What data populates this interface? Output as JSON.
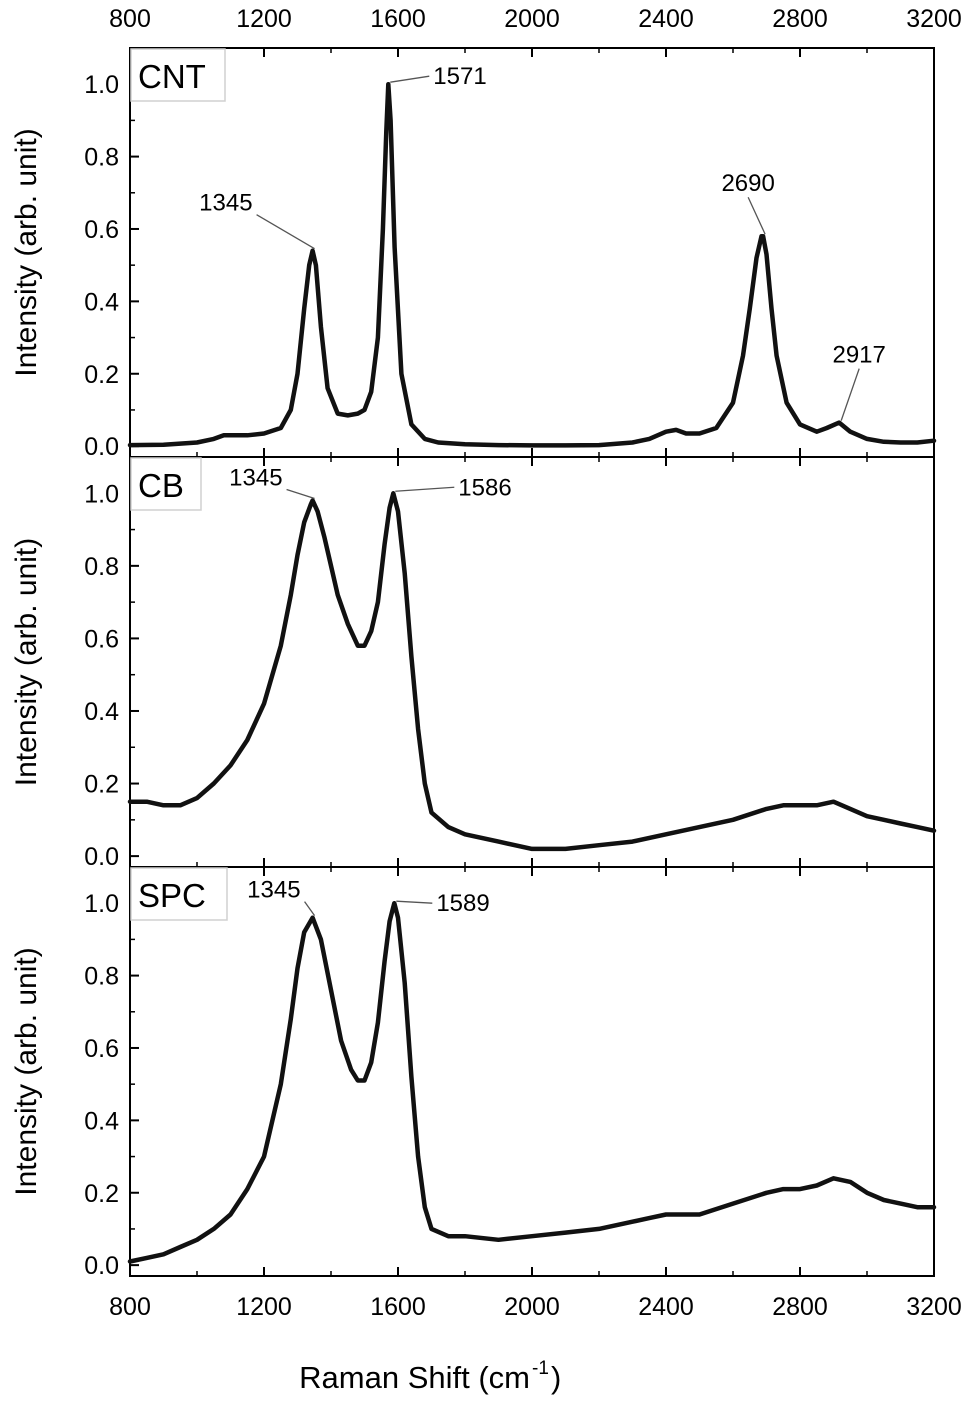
{
  "chart_data": {
    "type": "line",
    "layout": "three vertically stacked panels sharing one x axis",
    "x_axis": {
      "label": "Raman Shift (cm",
      "label_sup": "-1",
      "label_close": ")",
      "xlim": [
        800,
        3200
      ],
      "ticks": [
        800,
        1200,
        1600,
        2000,
        2400,
        2800,
        3200
      ],
      "tick_labels": [
        "800",
        "1200",
        "1600",
        "2000",
        "2400",
        "2800",
        "3200"
      ]
    },
    "y_axis": {
      "label": "Intensity (arb. unit)",
      "ylim": [
        -0.03,
        1.1
      ],
      "ticks": [
        0.0,
        0.2,
        0.4,
        0.6,
        0.8,
        1.0
      ],
      "tick_labels": [
        "0.0",
        "0.2",
        "0.4",
        "0.6",
        "0.8",
        "1.0"
      ]
    },
    "panels": [
      {
        "name": "CNT",
        "color": "#111111",
        "x": [
          800,
          900,
          1000,
          1050,
          1080,
          1100,
          1150,
          1200,
          1250,
          1280,
          1300,
          1320,
          1335,
          1345,
          1355,
          1370,
          1390,
          1420,
          1450,
          1480,
          1500,
          1520,
          1540,
          1555,
          1565,
          1571,
          1578,
          1590,
          1610,
          1640,
          1680,
          1720,
          1800,
          1900,
          2000,
          2100,
          2200,
          2300,
          2350,
          2400,
          2430,
          2460,
          2500,
          2550,
          2600,
          2630,
          2650,
          2670,
          2685,
          2690,
          2700,
          2715,
          2730,
          2760,
          2800,
          2850,
          2880,
          2917,
          2950,
          3000,
          3050,
          3100,
          3150,
          3200
        ],
        "values": [
          0.003,
          0.004,
          0.01,
          0.02,
          0.03,
          0.03,
          0.03,
          0.035,
          0.05,
          0.1,
          0.2,
          0.38,
          0.5,
          0.54,
          0.5,
          0.33,
          0.16,
          0.09,
          0.085,
          0.09,
          0.1,
          0.15,
          0.3,
          0.6,
          0.87,
          1.0,
          0.9,
          0.55,
          0.2,
          0.06,
          0.02,
          0.01,
          0.005,
          0.003,
          0.002,
          0.002,
          0.003,
          0.01,
          0.02,
          0.04,
          0.045,
          0.035,
          0.035,
          0.05,
          0.12,
          0.25,
          0.38,
          0.52,
          0.58,
          0.58,
          0.53,
          0.38,
          0.25,
          0.12,
          0.06,
          0.04,
          0.05,
          0.065,
          0.04,
          0.02,
          0.012,
          0.01,
          0.01,
          0.015
        ],
        "annotations": [
          {
            "label": "1345",
            "x": 1345,
            "y": 0.54
          },
          {
            "label": "1571",
            "x": 1571,
            "y": 1.0
          },
          {
            "label": "2690",
            "x": 2690,
            "y": 0.58
          },
          {
            "label": "2917",
            "x": 2917,
            "y": 0.065
          }
        ]
      },
      {
        "name": "CB",
        "color": "#111111",
        "x": [
          800,
          850,
          900,
          950,
          1000,
          1050,
          1100,
          1150,
          1200,
          1250,
          1280,
          1300,
          1320,
          1340,
          1345,
          1360,
          1380,
          1400,
          1420,
          1450,
          1480,
          1500,
          1520,
          1540,
          1560,
          1575,
          1586,
          1600,
          1620,
          1640,
          1660,
          1680,
          1700,
          1750,
          1800,
          1900,
          2000,
          2100,
          2200,
          2300,
          2400,
          2500,
          2600,
          2700,
          2750,
          2800,
          2850,
          2900,
          2950,
          3000,
          3050,
          3100,
          3150,
          3200
        ],
        "values": [
          0.15,
          0.15,
          0.14,
          0.14,
          0.16,
          0.2,
          0.25,
          0.32,
          0.42,
          0.58,
          0.72,
          0.83,
          0.92,
          0.97,
          0.98,
          0.95,
          0.88,
          0.8,
          0.72,
          0.64,
          0.58,
          0.58,
          0.62,
          0.7,
          0.86,
          0.96,
          1.0,
          0.95,
          0.78,
          0.55,
          0.35,
          0.2,
          0.12,
          0.08,
          0.06,
          0.04,
          0.02,
          0.02,
          0.03,
          0.04,
          0.06,
          0.08,
          0.1,
          0.13,
          0.14,
          0.14,
          0.14,
          0.15,
          0.13,
          0.11,
          0.1,
          0.09,
          0.08,
          0.07
        ],
        "annotations": [
          {
            "label": "1345",
            "x": 1345,
            "y": 0.98
          },
          {
            "label": "1586",
            "x": 1586,
            "y": 1.0
          }
        ]
      },
      {
        "name": "SPC",
        "color": "#111111",
        "x": [
          800,
          850,
          900,
          950,
          1000,
          1050,
          1100,
          1150,
          1200,
          1250,
          1280,
          1300,
          1320,
          1345,
          1370,
          1400,
          1430,
          1460,
          1480,
          1500,
          1520,
          1540,
          1560,
          1575,
          1589,
          1600,
          1620,
          1640,
          1660,
          1680,
          1700,
          1750,
          1800,
          1900,
          2000,
          2100,
          2200,
          2300,
          2350,
          2400,
          2450,
          2500,
          2600,
          2700,
          2750,
          2800,
          2850,
          2900,
          2950,
          3000,
          3050,
          3100,
          3150,
          3200
        ],
        "values": [
          0.01,
          0.02,
          0.03,
          0.05,
          0.07,
          0.1,
          0.14,
          0.21,
          0.3,
          0.5,
          0.68,
          0.82,
          0.92,
          0.96,
          0.9,
          0.76,
          0.62,
          0.54,
          0.51,
          0.51,
          0.56,
          0.67,
          0.84,
          0.95,
          1.0,
          0.96,
          0.78,
          0.52,
          0.3,
          0.16,
          0.1,
          0.08,
          0.08,
          0.07,
          0.08,
          0.09,
          0.1,
          0.12,
          0.13,
          0.14,
          0.14,
          0.14,
          0.17,
          0.2,
          0.21,
          0.21,
          0.22,
          0.24,
          0.23,
          0.2,
          0.18,
          0.17,
          0.16,
          0.16
        ],
        "annotations": [
          {
            "label": "1345",
            "x": 1345,
            "y": 0.96
          },
          {
            "label": "1589",
            "x": 1589,
            "y": 1.0
          }
        ]
      }
    ]
  }
}
